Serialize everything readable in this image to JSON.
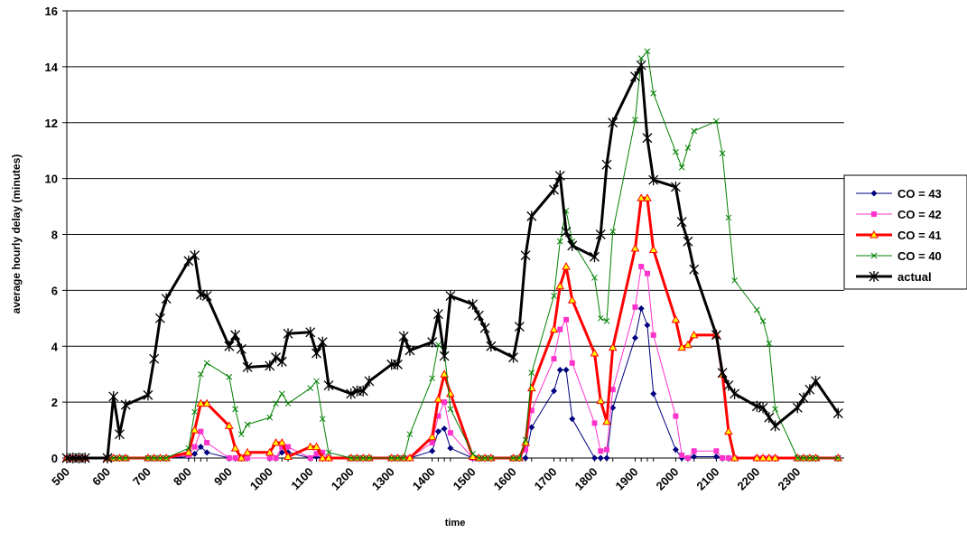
{
  "chart_data": {
    "type": "line",
    "title": "",
    "xlabel": "time",
    "ylabel": "average hourly delay (minutes)",
    "ylim": [
      0,
      16
    ],
    "yticks": [
      "0",
      "2",
      "4",
      "6",
      "8",
      "10",
      "12",
      "14",
      "16"
    ],
    "xlim": [
      500,
      2415
    ],
    "xtick_labels": [
      "500",
      "600",
      "700",
      "800",
      "900",
      "1000",
      "1100",
      "1200",
      "1300",
      "1400",
      "1500",
      "1600",
      "1700",
      "1800",
      "1900",
      "2000",
      "2100",
      "2200",
      "2300"
    ],
    "grid": "horizontal",
    "legend_position": "right",
    "x": [
      500,
      515,
      530,
      545,
      600,
      615,
      630,
      645,
      700,
      715,
      730,
      745,
      800,
      815,
      830,
      845,
      900,
      915,
      930,
      945,
      1000,
      1015,
      1030,
      1045,
      1100,
      1115,
      1130,
      1145,
      1200,
      1215,
      1230,
      1245,
      1300,
      1315,
      1330,
      1345,
      1400,
      1415,
      1430,
      1445,
      1500,
      1515,
      1530,
      1545,
      1600,
      1615,
      1630,
      1645,
      1700,
      1715,
      1730,
      1745,
      1800,
      1815,
      1830,
      1845,
      1900,
      1915,
      1930,
      1945,
      2000,
      2015,
      2030,
      2045,
      2100,
      2115,
      2130,
      2145,
      2200,
      2215,
      2230,
      2245,
      2300,
      2315,
      2330,
      2345,
      2400
    ],
    "series": [
      {
        "name": "CO = 43",
        "color": "#000080",
        "marker": "diamond",
        "values": [
          0,
          0,
          0,
          0,
          0,
          0,
          0,
          0,
          0,
          0,
          0,
          0,
          0.05,
          0.15,
          0.4,
          0.2,
          0,
          0,
          0,
          0,
          0,
          0,
          0.2,
          0.2,
          0,
          0.05,
          0,
          0,
          0,
          0,
          0,
          0,
          0,
          0,
          0,
          0,
          0.25,
          0.95,
          1.05,
          0.35,
          0,
          0,
          0,
          0,
          0,
          0,
          0,
          1.1,
          2.4,
          3.15,
          3.15,
          1.4,
          0,
          0,
          0,
          1.8,
          4.3,
          5.35,
          4.75,
          2.3,
          0.3,
          0,
          0,
          0.05,
          0.05,
          0,
          0,
          0,
          0,
          0,
          0,
          0,
          0,
          0,
          0,
          0,
          0
        ]
      },
      {
        "name": "CO = 42",
        "color": "#ff33cc",
        "marker": "square",
        "values": [
          0,
          0,
          0,
          0,
          0,
          0,
          0,
          0,
          0,
          0,
          0,
          0,
          0.1,
          0.4,
          0.95,
          0.55,
          0,
          0,
          0,
          0,
          0,
          0,
          0.4,
          0.4,
          0,
          0.15,
          0.2,
          0,
          0,
          0,
          0,
          0,
          0,
          0,
          0,
          0,
          0.55,
          1.5,
          2,
          0.9,
          0,
          0,
          0,
          0,
          0,
          0,
          0.3,
          1.7,
          3.55,
          4.6,
          4.95,
          3.4,
          1.25,
          0.25,
          0.3,
          2.45,
          5.4,
          6.85,
          6.6,
          4.4,
          1.5,
          0.1,
          0,
          0.25,
          0.25,
          0,
          0,
          0,
          0,
          0,
          0,
          0,
          0,
          0,
          0,
          0,
          0
        ]
      },
      {
        "name": "CO = 41",
        "color": "#ff0000",
        "marker": "triangle",
        "values": [
          0,
          0,
          0,
          0,
          0,
          0,
          0,
          0,
          0,
          0,
          0,
          0,
          0.2,
          1,
          1.95,
          1.95,
          1.15,
          0.35,
          0,
          0.2,
          0.2,
          0.55,
          0.55,
          0.05,
          0.4,
          0.4,
          0,
          0,
          0,
          0,
          0,
          0,
          0,
          0,
          0,
          0,
          0.75,
          2.1,
          3,
          2.3,
          0.05,
          0,
          0,
          0,
          0,
          0,
          0.55,
          2.5,
          4.6,
          6.15,
          6.85,
          5.65,
          3.75,
          2.05,
          1.3,
          3.95,
          7.5,
          9.3,
          9.3,
          7.45,
          4.95,
          3.95,
          4.05,
          4.4,
          4.4,
          3,
          0.95,
          0,
          0,
          0,
          0,
          0,
          0,
          0,
          0,
          0,
          0
        ]
      },
      {
        "name": "CO = 40",
        "color": "#008000",
        "marker": "x",
        "values": [
          0,
          0,
          0,
          0,
          0,
          0,
          0,
          0,
          0,
          0,
          0,
          0,
          0.35,
          1.65,
          3,
          3.4,
          2.9,
          1.75,
          0.85,
          1.2,
          1.45,
          1.95,
          2.3,
          1.95,
          2.5,
          2.75,
          1.4,
          0.2,
          0,
          0,
          0,
          0,
          0,
          0,
          0,
          0.85,
          2.85,
          4.05,
          3.85,
          1.75,
          0.15,
          0,
          0,
          0,
          0,
          0,
          0.65,
          3.05,
          5.8,
          7.75,
          8.85,
          7.75,
          6.45,
          5,
          4.9,
          8.1,
          12.1,
          14.3,
          14.55,
          13.05,
          10.95,
          10.4,
          11.1,
          11.7,
          12.05,
          10.9,
          8.6,
          6.35,
          5.3,
          4.9,
          4.1,
          1.75,
          0,
          0,
          0,
          0,
          0
        ]
      },
      {
        "name": "actual",
        "color": "#000000",
        "marker": "star",
        "values": [
          0,
          0,
          0,
          0,
          0,
          2.2,
          0.85,
          1.9,
          2.25,
          3.55,
          5,
          5.7,
          7.05,
          7.25,
          5.85,
          5.8,
          4,
          4.4,
          3.9,
          3.25,
          3.3,
          3.6,
          3.45,
          4.45,
          4.5,
          3.75,
          4.15,
          2.6,
          2.3,
          2.4,
          2.4,
          2.75,
          3.35,
          3.35,
          4.35,
          3.85,
          4.15,
          5.15,
          3.65,
          5.8,
          5.5,
          5.1,
          4.65,
          4,
          3.6,
          4.7,
          7.25,
          8.65,
          9.6,
          10.1,
          8.1,
          7.6,
          7.2,
          8,
          10.5,
          12,
          13.65,
          14.05,
          11.45,
          9.95,
          9.7,
          8.45,
          7.75,
          6.75,
          4.4,
          3.05,
          2.6,
          2.3,
          1.85,
          1.8,
          1.45,
          1.15,
          1.8,
          2.15,
          2.45,
          2.75,
          1.6
        ]
      }
    ]
  }
}
